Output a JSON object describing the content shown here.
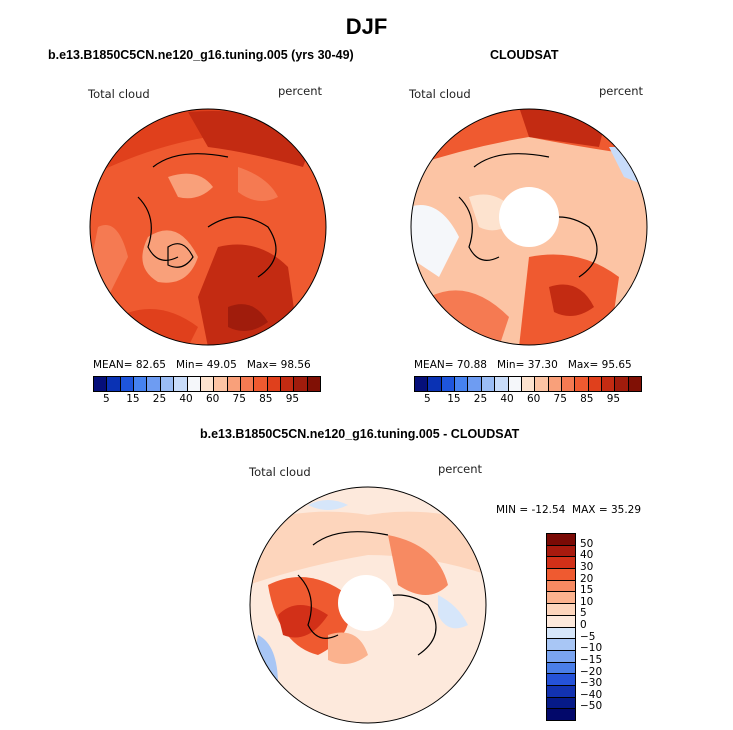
{
  "title": "DJF",
  "panels": [
    {
      "subtitle": "b.e13.B1850C5CN.ne120_g16.tuning.005 (yrs 30-49)",
      "left_label": "Total cloud",
      "right_label": "percent",
      "stats": {
        "mean_label": "MEAN=",
        "mean": "82.65",
        "min_label": "Min=",
        "min": "49.05",
        "max_label": "Max=",
        "max": "98.56"
      },
      "has_hole": false
    },
    {
      "subtitle": "CLOUDSAT",
      "left_label": "Total cloud",
      "right_label": "percent",
      "stats": {
        "mean_label": "MEAN=",
        "mean": "70.88",
        "min_label": "Min=",
        "min": "37.30",
        "max_label": "Max=",
        "max": "95.65"
      },
      "has_hole": true
    },
    {
      "subtitle": "b.e13.B1850C5CN.ne120_g16.tuning.005 - CLOUDSAT",
      "left_label": "Total cloud",
      "right_label": "percent",
      "stats": {
        "min_label": "MIN =",
        "min": "-12.54",
        "max_label": "MAX =",
        "max": "35.29"
      },
      "has_hole": true
    }
  ],
  "chart_data": [
    {
      "type": "heatmap",
      "projection": "polar stereographic (north pole)",
      "field": "Total cloud",
      "units": "percent",
      "colorbar": {
        "orientation": "horizontal",
        "tick_labels": [
          "5",
          "15",
          "25",
          "40",
          "60",
          "75",
          "85",
          "95"
        ],
        "colors": [
          "#050f7a",
          "#0a32b4",
          "#1e55dc",
          "#4682f0",
          "#6e9cf2",
          "#9bbdf5",
          "#c8dcfa",
          "#f5f7fa",
          "#fde3cf",
          "#fcc4a4",
          "#f9a07a",
          "#f57a52",
          "#ef5a30",
          "#e0401c",
          "#c32b12",
          "#a01c0c",
          "#801005"
        ]
      },
      "stats": {
        "mean": 82.65,
        "min": 49.05,
        "max": 98.56
      }
    },
    {
      "type": "heatmap",
      "projection": "polar stereographic (north pole)",
      "field": "Total cloud",
      "units": "percent",
      "colorbar": {
        "orientation": "horizontal",
        "tick_labels": [
          "5",
          "15",
          "25",
          "40",
          "60",
          "75",
          "85",
          "95"
        ],
        "colors": [
          "#050f7a",
          "#0a32b4",
          "#1e55dc",
          "#4682f0",
          "#6e9cf2",
          "#9bbdf5",
          "#c8dcfa",
          "#f5f7fa",
          "#fde3cf",
          "#fcc4a4",
          "#f9a07a",
          "#f57a52",
          "#ef5a30",
          "#e0401c",
          "#c32b12",
          "#a01c0c",
          "#801005"
        ]
      },
      "stats": {
        "mean": 70.88,
        "min": 37.3,
        "max": 95.65
      }
    },
    {
      "type": "heatmap",
      "projection": "polar stereographic (north pole)",
      "field": "Total cloud",
      "units": "percent",
      "colorbar": {
        "orientation": "vertical",
        "tick_labels": [
          "50",
          "40",
          "30",
          "20",
          "15",
          "10",
          "5",
          "0",
          "−5",
          "−10",
          "−15",
          "−20",
          "−30",
          "−40",
          "−50"
        ],
        "colors": [
          "#7a0a05",
          "#a81a0e",
          "#d23018",
          "#ef5a30",
          "#f78a62",
          "#fbb28e",
          "#fdd5bc",
          "#fde9dc",
          "#d6e6fa",
          "#a8c6f5",
          "#7aa4f0",
          "#4a7ee8",
          "#2552d8",
          "#1232b0",
          "#061a88",
          "#02086a"
        ]
      },
      "stats": {
        "min": -12.54,
        "max": 35.29
      }
    }
  ]
}
